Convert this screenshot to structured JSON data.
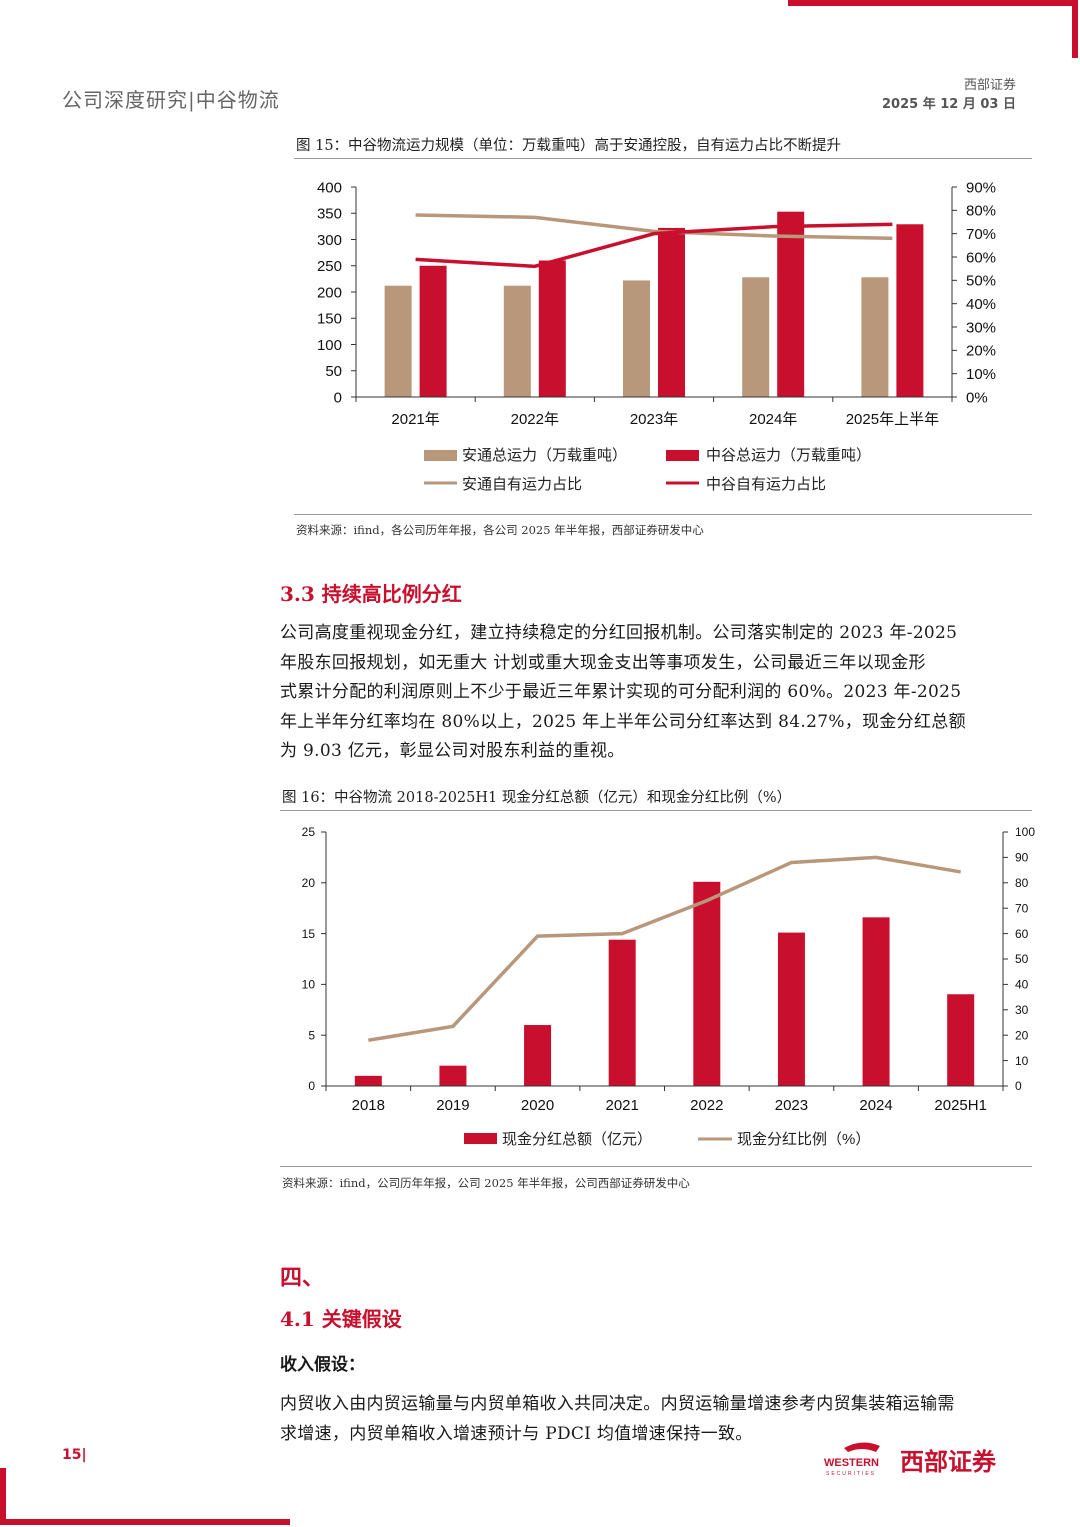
{
  "header": {
    "left": "公司深度研究|中谷物流",
    "right_line1": "西部证券",
    "right_line2": "2025 年 12 月 03 日"
  },
  "figure15": {
    "title": "图 15：中谷物流运力规模（单位：万载重吨）高于安通控股，自有运力占比不断提升",
    "source": "资料来源：ifind，各公司历年年报，各公司 2025 年半年报，西部证券研发中心",
    "legend": {
      "s1": "安通总运力（万载重吨）",
      "s2": "中谷总运力（万载重吨）",
      "s3": "安通自有运力占比",
      "s4": "中谷自有运力占比"
    }
  },
  "section33": {
    "title": "3.3 持续高比例分红",
    "lines": [
      "公司高度重视现金分红，建立持续稳定的分红回报机制。公司落实制定的 2023 年-2025",
      "年股东回报规划，如无重大 计划或重大现金支出等事项发生，公司最近三年以现金形",
      "式累计分配的利润原则上不少于最近三年累计实现的可分配利润的 60%。2023 年-2025",
      "年上半年分红率均在 80%以上，2025 年上半年公司分红率达到 84.27%，现金分红总额",
      "为 9.03 亿元，彰显公司对股东利益的重视。"
    ]
  },
  "figure16": {
    "title": "图 16：中谷物流 2018-2025H1 现金分红总额（亿元）和现金分红比例（%）",
    "source": "资料来源：ifind，公司历年年报，公司 2025 年半年报，公司西部证券研发中心",
    "legend": {
      "s1": "现金分红总额（亿元）",
      "s2": "现金分红比例（%）"
    }
  },
  "section4": {
    "heading": "四、",
    "subtitle": "4.1 关键假设",
    "label": "收入假设：",
    "lines": [
      "内贸收入由内贸运输量与内贸单箱收入共同决定。内贸运输量增速参考内贸集装箱运输需",
      "求增速，内贸单箱收入增速预计与 PDCI 均值增速保持一致。"
    ]
  },
  "footer": {
    "page": "15|",
    "logo_en": "WESTERN",
    "logo_en2": "SECURITIES",
    "logo_cn": "西部证券"
  },
  "colors": {
    "red": "#c8102e",
    "tan": "#b8977a"
  },
  "chart_data": [
    {
      "type": "bar",
      "categories": [
        "2021年",
        "2022年",
        "2023年",
        "2024年",
        "2025年上半年"
      ],
      "series": [
        {
          "name": "安通总运力（万载重吨）",
          "axis": "left",
          "kind": "bar",
          "color": "#b8977a",
          "values": [
            212,
            212,
            222,
            228,
            228
          ]
        },
        {
          "name": "中谷总运力（万载重吨）",
          "axis": "left",
          "kind": "bar",
          "color": "#c8102e",
          "values": [
            250,
            260,
            322,
            353,
            329
          ]
        },
        {
          "name": "安通自有运力占比",
          "axis": "right",
          "kind": "line",
          "color": "#b8977a",
          "values": [
            0.78,
            0.77,
            0.71,
            0.69,
            0.68
          ]
        },
        {
          "name": "中谷自有运力占比",
          "axis": "right",
          "kind": "line",
          "color": "#c8102e",
          "values": [
            0.59,
            0.56,
            0.7,
            0.73,
            0.74
          ]
        }
      ],
      "ylim_left": [
        0,
        400
      ],
      "yticks_left": [
        "0",
        "50",
        "100",
        "150",
        "200",
        "250",
        "300",
        "350",
        "400"
      ],
      "ylim_right": [
        0,
        0.9
      ],
      "yticks_right": [
        "0%",
        "10%",
        "20%",
        "30%",
        "40%",
        "50%",
        "60%",
        "70%",
        "80%",
        "90%"
      ],
      "legend": "bottom"
    },
    {
      "type": "bar",
      "categories": [
        "2018",
        "2019",
        "2020",
        "2021",
        "2022",
        "2023",
        "2024",
        "2025H1"
      ],
      "series": [
        {
          "name": "现金分红总额（亿元）",
          "axis": "left",
          "kind": "bar",
          "color": "#c8102e",
          "values": [
            1.0,
            2.0,
            6.0,
            14.4,
            20.1,
            15.1,
            16.6,
            9.03
          ]
        },
        {
          "name": "现金分红比例（%）",
          "axis": "right",
          "kind": "line",
          "color": "#b8977a",
          "values": [
            18,
            23.5,
            59,
            60,
            73,
            88,
            90,
            84.27
          ]
        }
      ],
      "ylim_left": [
        0,
        25
      ],
      "yticks_left": [
        "0",
        "5",
        "10",
        "15",
        "20",
        "25"
      ],
      "ylim_right": [
        0,
        100
      ],
      "yticks_right": [
        "0",
        "10",
        "20",
        "30",
        "40",
        "50",
        "60",
        "70",
        "80",
        "90",
        "100"
      ],
      "legend": "bottom"
    }
  ]
}
